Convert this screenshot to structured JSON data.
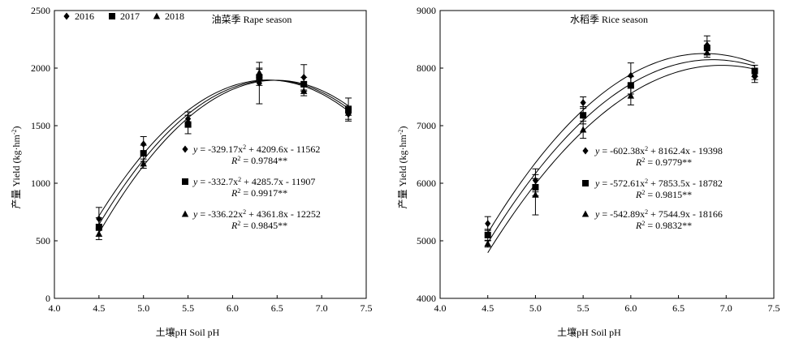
{
  "chart_data": [
    {
      "type": "scatter",
      "title": "油菜季 Rape season",
      "xlabel": "土壤pH Soil pH",
      "ylabel": "产量 Yield (kg·hm⁻²)",
      "xlim": [
        4.0,
        7.5
      ],
      "ylim": [
        0,
        2500
      ],
      "xticks": [
        "4.0",
        "4.5",
        "5.0",
        "5.5",
        "6.0",
        "6.5",
        "7.0",
        "7.5"
      ],
      "yticks": [
        "0",
        "500",
        "1000",
        "1500",
        "2000",
        "2500"
      ],
      "legend_position": "top-left",
      "fit_range": [
        4.5,
        7.3
      ],
      "series": [
        {
          "name": "2016",
          "marker": "diamond",
          "x": [
            4.5,
            5.0,
            5.5,
            6.3,
            6.8,
            7.3
          ],
          "y": [
            690,
            1340,
            1560,
            1870,
            1920,
            1600
          ],
          "err": [
            100,
            65,
            60,
            180,
            110,
            45
          ],
          "fit": {
            "a": -329.17,
            "b": 4209.6,
            "c": -11562
          },
          "eq_label": "y = -329.17x² + 4209.6x - 11562",
          "r2_label": "R² = 0.9784**"
        },
        {
          "name": "2017",
          "marker": "square",
          "x": [
            4.5,
            5.0,
            5.5,
            6.3,
            6.8,
            7.3
          ],
          "y": [
            620,
            1260,
            1510,
            1920,
            1860,
            1640
          ],
          "err": [
            80,
            70,
            80,
            70,
            60,
            100
          ],
          "fit": {
            "a": -332.7,
            "b": 4285.7,
            "c": -11907
          },
          "eq_label": "y = -332.7x² + 4285.7x - 11907",
          "r2_label": "R² = 0.9917**"
        },
        {
          "name": "2018",
          "marker": "triangle",
          "x": [
            4.5,
            5.0,
            5.5,
            6.3,
            6.8,
            7.3
          ],
          "y": [
            560,
            1170,
            1540,
            1960,
            1800,
            1630
          ],
          "err": [
            50,
            40,
            50,
            40,
            40,
            40
          ],
          "fit": {
            "a": -336.22,
            "b": 4361.8,
            "c": -12252
          },
          "eq_label": "y = -336.22x² + 4361.8x - 12252",
          "r2_label": "R² = 0.9845**"
        }
      ]
    },
    {
      "type": "scatter",
      "title": "水稻季 Rice season",
      "xlabel": "土壤pH Soil pH",
      "ylabel": "产量 Yield (kg·hm⁻²)",
      "xlim": [
        4.0,
        7.5
      ],
      "ylim": [
        4000,
        9000
      ],
      "xticks": [
        "4.0",
        "4.5",
        "5.0",
        "5.5",
        "6.0",
        "6.5",
        "7.0",
        "7.5"
      ],
      "yticks": [
        "4000",
        "5000",
        "6000",
        "7000",
        "8000",
        "9000"
      ],
      "fit_range": [
        4.5,
        7.3
      ],
      "series": [
        {
          "name": "2016",
          "marker": "diamond",
          "x": [
            4.5,
            5.0,
            5.5,
            6.0,
            6.8,
            7.3
          ],
          "y": [
            5300,
            6050,
            7400,
            7870,
            8400,
            7850
          ],
          "err": [
            120,
            200,
            100,
            220,
            160,
            100
          ],
          "fit": {
            "a": -602.38,
            "b": 8162.4,
            "c": -19398
          },
          "eq_label": "y = -602.38x² + 8162.4x - 19398",
          "r2_label": "R² = 0.9779**"
        },
        {
          "name": "2017",
          "marker": "square",
          "x": [
            4.5,
            5.0,
            5.5,
            6.0,
            6.8,
            7.3
          ],
          "y": [
            5100,
            5930,
            7180,
            7700,
            8350,
            7950
          ],
          "err": [
            100,
            150,
            150,
            150,
            120,
            100
          ],
          "fit": {
            "a": -572.61,
            "b": 7853.5,
            "c": -18782
          },
          "eq_label": "y = -572.61x² + 7853.5x - 18782",
          "r2_label": "R² = 0.9815**"
        },
        {
          "name": "2018",
          "marker": "triangle",
          "x": [
            4.5,
            5.0,
            5.5,
            6.0,
            6.8,
            7.3
          ],
          "y": [
            4950,
            5800,
            6930,
            7520,
            8270,
            7900
          ],
          "err": [
            60,
            350,
            150,
            160,
            80,
            100
          ],
          "fit": {
            "a": -542.89,
            "b": 7544.9,
            "c": -18166
          },
          "eq_label": "y = -542.89x² + 7544.9x - 18166",
          "r2_label": "R² = 0.9832**"
        }
      ]
    }
  ]
}
